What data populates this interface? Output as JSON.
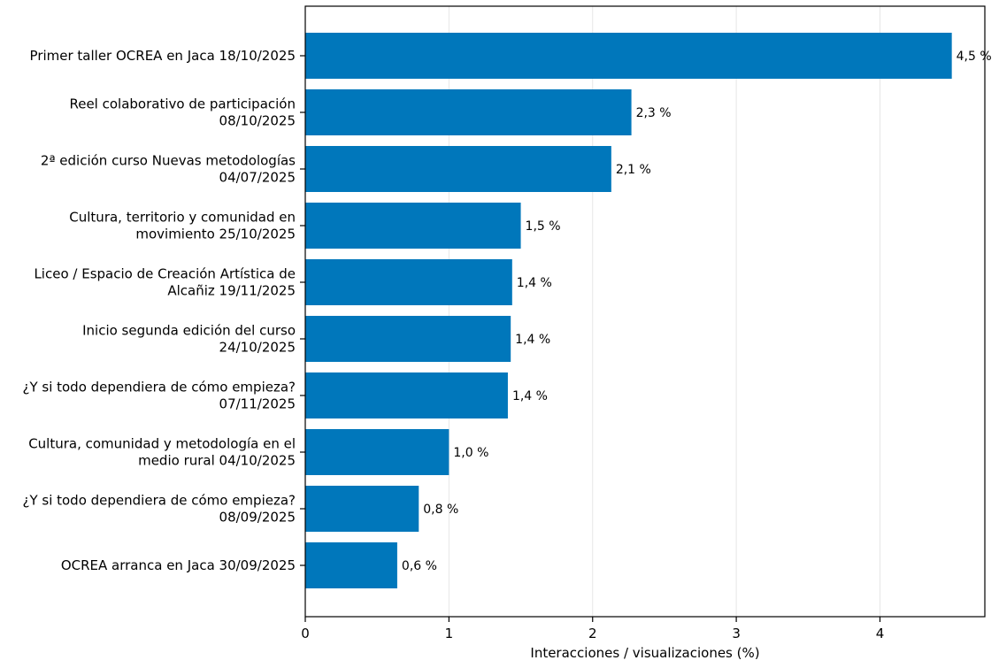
{
  "chart_data": {
    "type": "bar",
    "orientation": "horizontal",
    "categories": [
      [
        "Primer taller OCREA en Jaca 18/10/2025"
      ],
      [
        "Reel colaborativo de participación",
        "08/10/2025"
      ],
      [
        "2ª edición curso Nuevas metodologías",
        "04/07/2025"
      ],
      [
        "Cultura, territorio y comunidad en",
        "movimiento 25/10/2025"
      ],
      [
        "Liceo / Espacio de Creación Artística de",
        "Alcañiz 19/11/2025"
      ],
      [
        "Inicio segunda edición del curso",
        "24/10/2025"
      ],
      [
        "¿Y si todo dependiera de cómo empieza?",
        "07/11/2025"
      ],
      [
        "Cultura, comunidad y metodología en el",
        "medio rural 04/10/2025"
      ],
      [
        "¿Y si todo dependiera de cómo empieza?",
        "08/09/2025"
      ],
      [
        "OCREA arranca en Jaca 30/09/2025"
      ]
    ],
    "values": [
      4.5,
      2.27,
      2.13,
      1.5,
      1.44,
      1.43,
      1.41,
      1.0,
      0.79,
      0.64
    ],
    "value_labels": [
      "4,5 %",
      "2,3 %",
      "2,1 %",
      "1,5 %",
      "1,4 %",
      "1,4 %",
      "1,4 %",
      "1,0 %",
      "0,8 %",
      "0,6 %"
    ],
    "xlabel": "Interacciones / visualizaciones (%)",
    "ylabel": "",
    "title": "",
    "xlim": [
      0,
      4.73
    ],
    "xticks": [
      0,
      1,
      2,
      3,
      4
    ],
    "xtick_labels": [
      "0",
      "1",
      "2",
      "3",
      "4"
    ],
    "grid": "vertical",
    "bar_color": "#0077BB",
    "grid_color": "#E6E6E6"
  }
}
